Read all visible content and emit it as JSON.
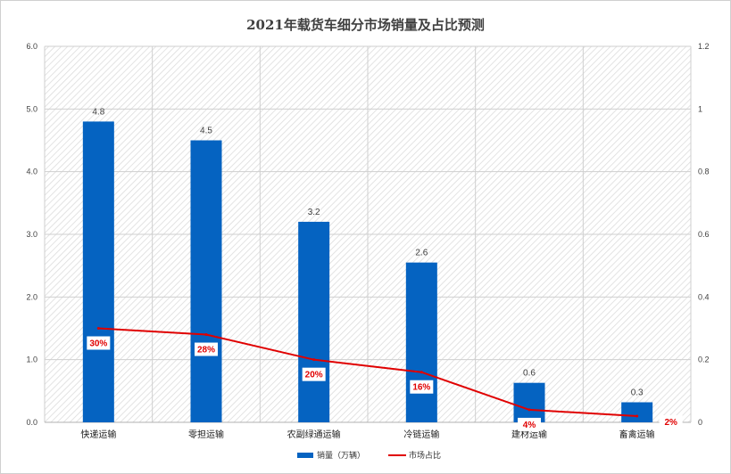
{
  "chart_data": {
    "type": "bar",
    "title": "2021年载货车细分市场销量及占比预测",
    "categories": [
      "快递运输",
      "零担运输",
      "农副绿通运输",
      "冷链运输",
      "建材运输",
      "畜禽运输"
    ],
    "series": [
      {
        "name": "销量（万辆）",
        "type": "bar",
        "axis": "left",
        "values": [
          4.8,
          4.5,
          3.2,
          2.55,
          0.63,
          0.32
        ],
        "labels": [
          "4.8",
          "4.5",
          "3.2",
          "2.6",
          "0.6",
          "0.3"
        ],
        "color": "#0563c1"
      },
      {
        "name": "市场占比",
        "type": "line",
        "axis": "right",
        "values": [
          0.3,
          0.28,
          0.2,
          0.16,
          0.04,
          0.02
        ],
        "labels": [
          "30%",
          "28%",
          "20%",
          "16%",
          "4%",
          "2%"
        ],
        "color": "#e00000"
      }
    ],
    "ylim": [
      0,
      6
    ],
    "y_ticks": [
      "0.0",
      "1.0",
      "2.0",
      "3.0",
      "4.0",
      "5.0",
      "6.0"
    ],
    "y2lim": [
      0,
      1.2
    ],
    "y2_ticks": [
      "0",
      "0.2",
      "0.4",
      "0.6",
      "0.8",
      "1",
      "1.2"
    ],
    "grid": true,
    "legend_position": "bottom"
  }
}
